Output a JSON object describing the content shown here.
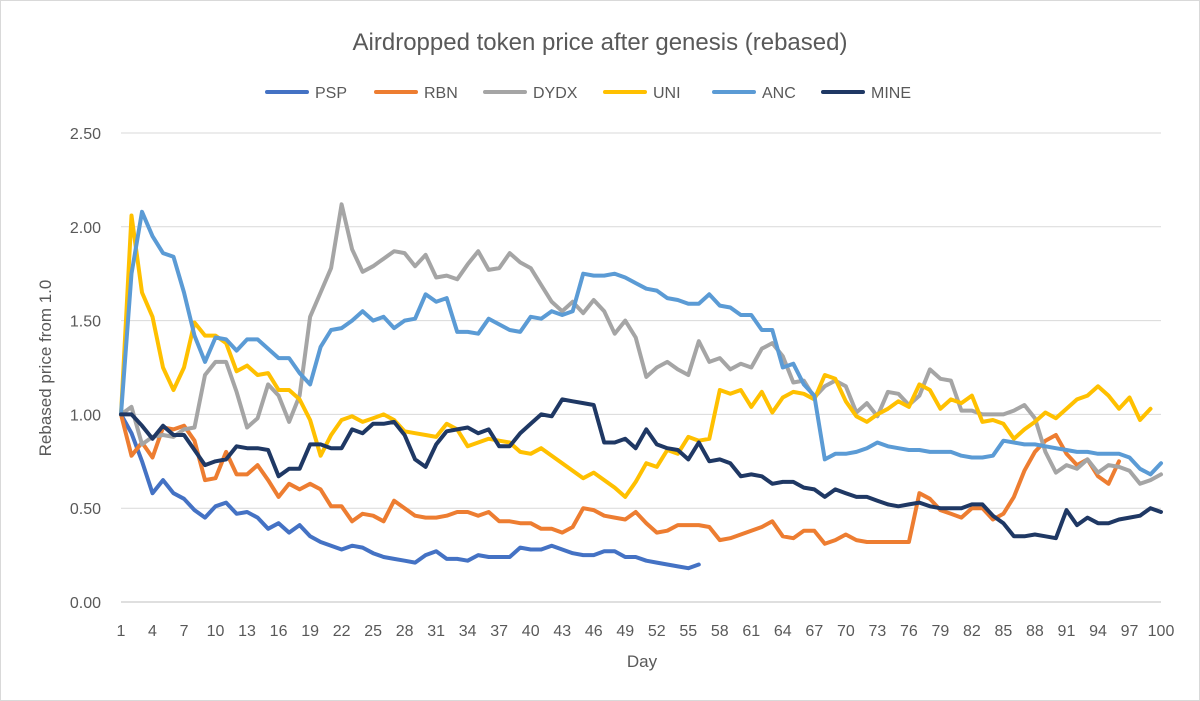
{
  "chart_data": {
    "type": "line",
    "title": "Airdropped token price after genesis (rebased)",
    "xlabel": "Day",
    "ylabel": "Rebased price from 1.0",
    "xlim": [
      1,
      100
    ],
    "ylim": [
      0,
      2.5
    ],
    "x_tick_labels": [
      1,
      4,
      7,
      10,
      13,
      16,
      19,
      22,
      25,
      28,
      31,
      34,
      37,
      40,
      43,
      46,
      49,
      52,
      55,
      58,
      61,
      64,
      67,
      70,
      73,
      76,
      79,
      82,
      85,
      88,
      91,
      94,
      97,
      100
    ],
    "y_tick_values": [
      0,
      0.5,
      1.0,
      1.5,
      2.0,
      2.5
    ],
    "y_tick_labels": [
      "0.00",
      "0.50",
      "1.00",
      "1.50",
      "2.00",
      "2.50"
    ],
    "grid": true,
    "legend_position": "top-center",
    "series": [
      {
        "name": "PSP",
        "color": "#4472C4",
        "values": [
          1.0,
          0.9,
          0.75,
          0.58,
          0.65,
          0.58,
          0.55,
          0.49,
          0.45,
          0.51,
          0.53,
          0.47,
          0.48,
          0.45,
          0.39,
          0.42,
          0.37,
          0.41,
          0.35,
          0.32,
          0.3,
          0.28,
          0.3,
          0.29,
          0.26,
          0.24,
          0.23,
          0.22,
          0.21,
          0.25,
          0.27,
          0.23,
          0.23,
          0.22,
          0.25,
          0.24,
          0.24,
          0.24,
          0.29,
          0.28,
          0.28,
          0.3,
          0.28,
          0.26,
          0.25,
          0.25,
          0.27,
          0.27,
          0.24,
          0.24,
          0.22,
          0.21,
          0.2,
          0.19,
          0.18,
          0.2
        ]
      },
      {
        "name": "RBN",
        "color": "#ED7D31",
        "values": [
          1.0,
          0.78,
          0.85,
          0.77,
          0.93,
          0.92,
          0.94,
          0.86,
          0.65,
          0.66,
          0.8,
          0.68,
          0.68,
          0.73,
          0.65,
          0.56,
          0.63,
          0.6,
          0.63,
          0.6,
          0.51,
          0.51,
          0.43,
          0.47,
          0.46,
          0.43,
          0.54,
          0.5,
          0.46,
          0.45,
          0.45,
          0.46,
          0.48,
          0.48,
          0.46,
          0.48,
          0.43,
          0.43,
          0.42,
          0.42,
          0.39,
          0.39,
          0.37,
          0.4,
          0.5,
          0.49,
          0.46,
          0.45,
          0.44,
          0.48,
          0.42,
          0.37,
          0.38,
          0.41,
          0.41,
          0.41,
          0.4,
          0.33,
          0.34,
          0.36,
          0.38,
          0.4,
          0.43,
          0.35,
          0.34,
          0.38,
          0.38,
          0.31,
          0.33,
          0.36,
          0.33,
          0.32,
          0.32,
          0.32,
          0.32,
          0.32,
          0.58,
          0.55,
          0.49,
          0.47,
          0.45,
          0.5,
          0.5,
          0.44,
          0.47,
          0.56,
          0.7,
          0.8,
          0.86,
          0.89,
          0.79,
          0.73,
          0.76,
          0.67,
          0.63,
          0.75
        ]
      },
      {
        "name": "DYDX",
        "color": "#A5A5A5",
        "values": [
          1.0,
          1.04,
          0.84,
          0.88,
          0.89,
          0.88,
          0.92,
          0.93,
          1.21,
          1.28,
          1.28,
          1.12,
          0.93,
          0.98,
          1.16,
          1.1,
          0.96,
          1.1,
          1.52,
          1.65,
          1.78,
          2.12,
          1.88,
          1.76,
          1.79,
          1.83,
          1.87,
          1.86,
          1.79,
          1.85,
          1.73,
          1.74,
          1.72,
          1.8,
          1.87,
          1.77,
          1.78,
          1.86,
          1.81,
          1.78,
          1.69,
          1.6,
          1.55,
          1.6,
          1.54,
          1.61,
          1.55,
          1.43,
          1.5,
          1.41,
          1.2,
          1.25,
          1.28,
          1.24,
          1.21,
          1.39,
          1.28,
          1.3,
          1.24,
          1.27,
          1.25,
          1.35,
          1.38,
          1.31,
          1.17,
          1.18,
          1.09,
          1.15,
          1.18,
          1.15,
          1.01,
          1.06,
          0.99,
          1.12,
          1.11,
          1.05,
          1.1,
          1.24,
          1.19,
          1.18,
          1.02,
          1.02,
          1.0,
          1.0,
          1.0,
          1.02,
          1.05,
          0.98,
          0.8,
          0.69,
          0.73,
          0.71,
          0.76,
          0.69,
          0.73,
          0.72,
          0.7,
          0.63,
          0.65,
          0.68
        ]
      },
      {
        "name": "UNI",
        "color": "#FFC000",
        "values": [
          1.0,
          2.06,
          1.65,
          1.52,
          1.25,
          1.13,
          1.25,
          1.49,
          1.42,
          1.42,
          1.38,
          1.23,
          1.26,
          1.21,
          1.22,
          1.13,
          1.13,
          1.08,
          0.97,
          0.78,
          0.89,
          0.97,
          0.99,
          0.96,
          0.98,
          1.0,
          0.97,
          0.91,
          0.9,
          0.89,
          0.88,
          0.95,
          0.92,
          0.83,
          0.85,
          0.87,
          0.86,
          0.85,
          0.8,
          0.79,
          0.82,
          0.78,
          0.74,
          0.7,
          0.66,
          0.69,
          0.65,
          0.61,
          0.56,
          0.64,
          0.74,
          0.72,
          0.81,
          0.79,
          0.88,
          0.86,
          0.87,
          1.13,
          1.11,
          1.13,
          1.04,
          1.12,
          1.01,
          1.09,
          1.12,
          1.11,
          1.08,
          1.21,
          1.19,
          1.07,
          0.99,
          0.96,
          1.0,
          1.03,
          1.07,
          1.04,
          1.16,
          1.13,
          1.03,
          1.08,
          1.06,
          1.1,
          0.96,
          0.97,
          0.95,
          0.87,
          0.92,
          0.96,
          1.01,
          0.98,
          1.03,
          1.08,
          1.1,
          1.15,
          1.1,
          1.03,
          1.09,
          0.97,
          1.03
        ]
      },
      {
        "name": "ANC",
        "color": "#5B9BD5",
        "values": [
          1.0,
          1.75,
          2.08,
          1.95,
          1.86,
          1.84,
          1.65,
          1.42,
          1.28,
          1.41,
          1.4,
          1.34,
          1.4,
          1.4,
          1.35,
          1.3,
          1.3,
          1.22,
          1.16,
          1.36,
          1.45,
          1.46,
          1.5,
          1.55,
          1.5,
          1.52,
          1.46,
          1.5,
          1.51,
          1.64,
          1.6,
          1.62,
          1.44,
          1.44,
          1.43,
          1.51,
          1.48,
          1.45,
          1.44,
          1.52,
          1.51,
          1.55,
          1.53,
          1.55,
          1.75,
          1.74,
          1.74,
          1.75,
          1.73,
          1.7,
          1.67,
          1.66,
          1.62,
          1.61,
          1.59,
          1.59,
          1.64,
          1.58,
          1.57,
          1.53,
          1.53,
          1.45,
          1.45,
          1.25,
          1.27,
          1.16,
          1.1,
          0.76,
          0.79,
          0.79,
          0.8,
          0.82,
          0.85,
          0.83,
          0.82,
          0.81,
          0.81,
          0.8,
          0.8,
          0.8,
          0.78,
          0.77,
          0.77,
          0.78,
          0.86,
          0.85,
          0.84,
          0.84,
          0.83,
          0.82,
          0.81,
          0.8,
          0.8,
          0.79,
          0.79,
          0.79,
          0.77,
          0.71,
          0.68,
          0.74
        ]
      },
      {
        "name": "MINE",
        "color": "#1F3864",
        "values": [
          1.0,
          1.0,
          0.94,
          0.87,
          0.94,
          0.89,
          0.89,
          0.81,
          0.73,
          0.75,
          0.76,
          0.83,
          0.82,
          0.82,
          0.81,
          0.67,
          0.71,
          0.71,
          0.84,
          0.84,
          0.82,
          0.82,
          0.92,
          0.9,
          0.95,
          0.95,
          0.96,
          0.89,
          0.76,
          0.72,
          0.84,
          0.91,
          0.92,
          0.93,
          0.9,
          0.92,
          0.83,
          0.83,
          0.9,
          0.95,
          1.0,
          0.99,
          1.08,
          1.07,
          1.06,
          1.05,
          0.85,
          0.85,
          0.87,
          0.82,
          0.92,
          0.84,
          0.82,
          0.81,
          0.76,
          0.85,
          0.75,
          0.76,
          0.74,
          0.67,
          0.68,
          0.67,
          0.63,
          0.64,
          0.64,
          0.61,
          0.6,
          0.56,
          0.6,
          0.58,
          0.56,
          0.56,
          0.54,
          0.52,
          0.51,
          0.52,
          0.53,
          0.51,
          0.5,
          0.5,
          0.5,
          0.52,
          0.52,
          0.46,
          0.42,
          0.35,
          0.35,
          0.36,
          0.35,
          0.34,
          0.49,
          0.41,
          0.45,
          0.42,
          0.42,
          0.44,
          0.45,
          0.46,
          0.5,
          0.48
        ]
      }
    ]
  }
}
